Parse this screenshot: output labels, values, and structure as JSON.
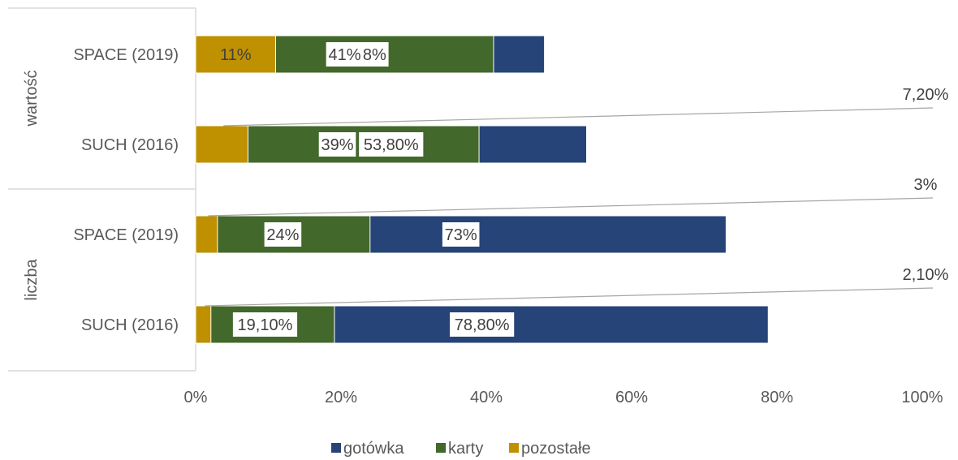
{
  "chart_data": {
    "type": "bar",
    "orientation": "horizontal",
    "stacked": true,
    "percent_stacked": true,
    "groups": [
      {
        "label": "wartość",
        "categories": [
          "SPACE (2019)",
          "SUCH (2016)"
        ]
      },
      {
        "label": "liczba",
        "categories": [
          "SPACE (2019)",
          "SUCH (2016)"
        ]
      }
    ],
    "categories": [
      "SPACE (2019)",
      "SUCH (2016)",
      "SPACE (2019)",
      "SUCH (2016)"
    ],
    "series": [
      {
        "name": "gotówka",
        "color": "#264478",
        "values": [
          48,
          53.8,
          73,
          78.8
        ],
        "labels": [
          "48%",
          "53,80%",
          "73%",
          "78,80%"
        ]
      },
      {
        "name": "karty",
        "color": "#43682B",
        "values": [
          41,
          39,
          24,
          19.1
        ],
        "labels": [
          "41%",
          "39%",
          "24%",
          "19,10%"
        ]
      },
      {
        "name": "pozostałe",
        "color": "#BF9000",
        "values": [
          11,
          7.2,
          3,
          2.1
        ],
        "labels": [
          "11%",
          "7,20%",
          "3%",
          "2,10%"
        ]
      }
    ],
    "xlim": [
      0,
      100
    ],
    "xticks": [
      "0%",
      "20%",
      "40%",
      "60%",
      "80%",
      "100%"
    ],
    "grid": false,
    "legend": "bottom"
  }
}
